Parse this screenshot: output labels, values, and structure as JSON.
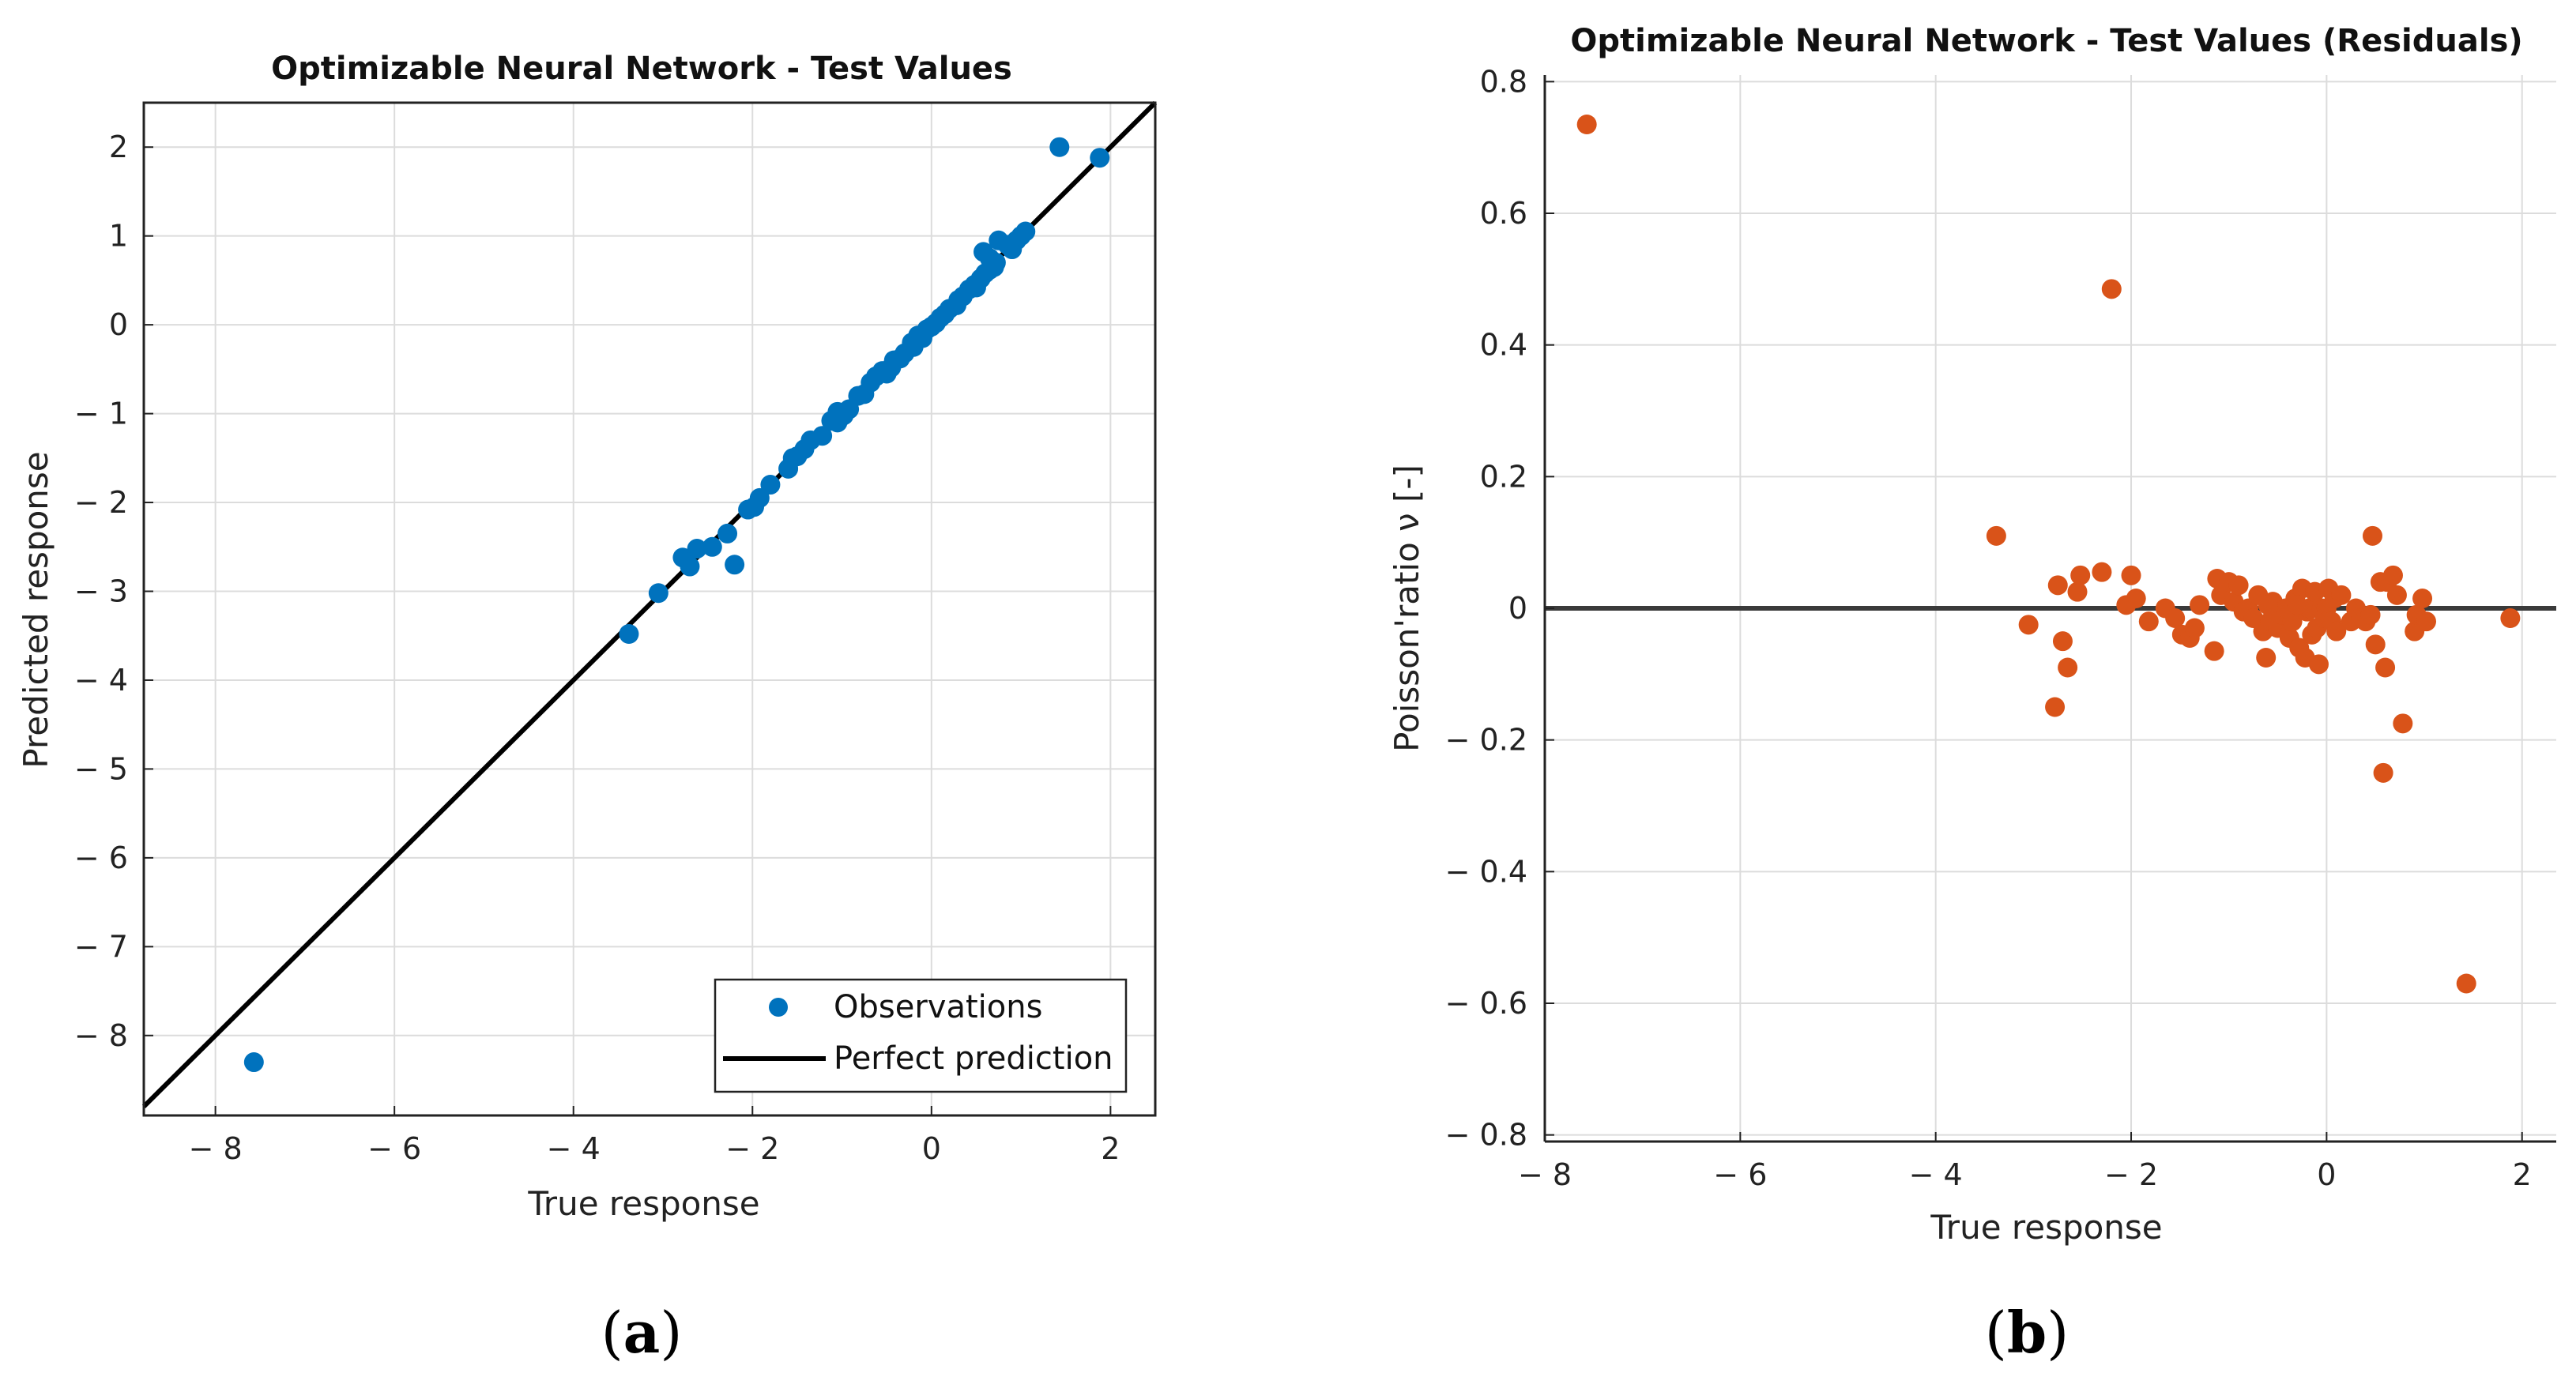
{
  "figure": {
    "label_a": "a",
    "label_b": "b"
  },
  "chart_data": [
    {
      "type": "scatter",
      "title": "Optimizable Neural Network - Test Values",
      "xlabel": "True response",
      "ylabel": "Predicted response",
      "xlim": [
        -8.8,
        2.5
      ],
      "ylim": [
        -8.9,
        2.5
      ],
      "xticks": [
        -8,
        -6,
        -4,
        -2,
        0,
        2
      ],
      "yticks": [
        -8,
        -7,
        -6,
        -5,
        -4,
        -3,
        -2,
        -1,
        0,
        1,
        2
      ],
      "grid": true,
      "legend": {
        "position": "bottom-right",
        "entries": [
          "Observations",
          "Perfect prediction"
        ]
      },
      "series": [
        {
          "name": "Observations",
          "color": "#0072BD",
          "points": [
            [
              -7.57,
              -8.3
            ],
            [
              -3.38,
              -3.48
            ],
            [
              -3.05,
              -3.02
            ],
            [
              -2.78,
              -2.62
            ],
            [
              -2.7,
              -2.72
            ],
            [
              -2.62,
              -2.52
            ],
            [
              -2.45,
              -2.5
            ],
            [
              -2.28,
              -2.35
            ],
            [
              -2.2,
              -2.7
            ],
            [
              -2.05,
              -2.08
            ],
            [
              -1.98,
              -2.05
            ],
            [
              -1.92,
              -1.95
            ],
            [
              -1.8,
              -1.8
            ],
            [
              -1.6,
              -1.62
            ],
            [
              -1.5,
              -1.48
            ],
            [
              -1.42,
              -1.4
            ],
            [
              -1.35,
              -1.3
            ],
            [
              -1.22,
              -1.25
            ],
            [
              -1.12,
              -1.08
            ],
            [
              -1.05,
              -1.1
            ],
            [
              -0.98,
              -1.02
            ],
            [
              -0.92,
              -0.95
            ],
            [
              -0.82,
              -0.8
            ],
            [
              -0.75,
              -0.78
            ],
            [
              -0.68,
              -0.65
            ],
            [
              -0.62,
              -0.58
            ],
            [
              -0.55,
              -0.52
            ],
            [
              -0.5,
              -0.55
            ],
            [
              -0.42,
              -0.4
            ],
            [
              -0.35,
              -0.38
            ],
            [
              -0.3,
              -0.32
            ],
            [
              -0.22,
              -0.2
            ],
            [
              -0.15,
              -0.12
            ],
            [
              -0.1,
              -0.15
            ],
            [
              -0.05,
              -0.05
            ],
            [
              0.0,
              -0.02
            ],
            [
              0.05,
              0.02
            ],
            [
              0.1,
              0.08
            ],
            [
              0.15,
              0.12
            ],
            [
              0.2,
              0.18
            ],
            [
              0.28,
              0.22
            ],
            [
              0.35,
              0.32
            ],
            [
              0.42,
              0.4
            ],
            [
              0.48,
              0.45
            ],
            [
              0.55,
              0.52
            ],
            [
              0.6,
              0.58
            ],
            [
              0.65,
              0.62
            ],
            [
              0.72,
              0.7
            ],
            [
              0.58,
              0.82
            ],
            [
              0.65,
              0.75
            ],
            [
              0.75,
              0.95
            ],
            [
              0.85,
              0.9
            ],
            [
              0.9,
              0.85
            ],
            [
              0.95,
              0.95
            ],
            [
              1.0,
              1.0
            ],
            [
              1.05,
              1.05
            ],
            [
              1.43,
              2.0
            ],
            [
              1.88,
              1.88
            ],
            [
              -1.05,
              -0.98
            ],
            [
              -0.45,
              -0.48
            ],
            [
              0.3,
              0.28
            ],
            [
              0.5,
              0.42
            ],
            [
              0.7,
              0.65
            ],
            [
              -0.2,
              -0.25
            ],
            [
              -1.55,
              -1.5
            ]
          ]
        },
        {
          "name": "Perfect prediction",
          "color": "#000000",
          "line": [
            [
              -8.8,
              -8.8
            ],
            [
              2.5,
              2.5
            ]
          ]
        }
      ]
    },
    {
      "type": "scatter",
      "title": "Optimizable Neural Network - Test Values (Residuals)",
      "xlabel": "True response",
      "ylabel": "Poisson'ratio ν [-]",
      "xlim": [
        -8,
        2.35
      ],
      "ylim": [
        -0.81,
        0.81
      ],
      "xticks": [
        -8,
        -6,
        -4,
        -2,
        0,
        2
      ],
      "yticks": [
        -0.8,
        -0.6,
        -0.4,
        -0.2,
        0,
        0.2,
        0.4,
        0.6,
        0.8
      ],
      "ytick_labels": [
        "− 0.8",
        "− 0.6",
        "− 0.4",
        "− 0.2",
        "0",
        "0.2",
        "0.4",
        "0.6",
        "0.8"
      ],
      "grid": true,
      "zero_line": 0,
      "series": [
        {
          "name": "Residuals",
          "color": "#D95319",
          "points": [
            [
              -7.57,
              0.735
            ],
            [
              -2.2,
              0.485
            ],
            [
              -3.38,
              0.11
            ],
            [
              -3.05,
              -0.025
            ],
            [
              -2.78,
              -0.15
            ],
            [
              -2.75,
              0.035
            ],
            [
              -2.7,
              -0.05
            ],
            [
              -2.65,
              -0.09
            ],
            [
              -2.55,
              0.025
            ],
            [
              -2.52,
              0.05
            ],
            [
              -2.3,
              0.055
            ],
            [
              -2.05,
              0.005
            ],
            [
              -2.0,
              0.05
            ],
            [
              -1.95,
              0.015
            ],
            [
              -1.82,
              -0.02
            ],
            [
              -1.65,
              0.0
            ],
            [
              -1.55,
              -0.015
            ],
            [
              -1.48,
              -0.04
            ],
            [
              -1.4,
              -0.045
            ],
            [
              -1.35,
              -0.03
            ],
            [
              -1.3,
              0.005
            ],
            [
              -1.15,
              -0.065
            ],
            [
              -1.12,
              0.045
            ],
            [
              -1.08,
              0.02
            ],
            [
              -1.0,
              0.04
            ],
            [
              -0.95,
              0.01
            ],
            [
              -0.9,
              0.035
            ],
            [
              -0.85,
              -0.005
            ],
            [
              -0.8,
              0.0
            ],
            [
              -0.75,
              -0.015
            ],
            [
              -0.7,
              0.02
            ],
            [
              -0.65,
              -0.035
            ],
            [
              -0.62,
              -0.075
            ],
            [
              -0.58,
              -0.02
            ],
            [
              -0.55,
              0.01
            ],
            [
              -0.5,
              -0.03
            ],
            [
              -0.45,
              -0.01
            ],
            [
              -0.42,
              0.0
            ],
            [
              -0.38,
              -0.045
            ],
            [
              -0.35,
              -0.02
            ],
            [
              -0.32,
              0.015
            ],
            [
              -0.28,
              -0.06
            ],
            [
              -0.25,
              0.03
            ],
            [
              -0.22,
              -0.075
            ],
            [
              -0.2,
              -0.005
            ],
            [
              -0.18,
              0.0
            ],
            [
              -0.15,
              -0.04
            ],
            [
              -0.12,
              0.025
            ],
            [
              -0.1,
              -0.03
            ],
            [
              -0.08,
              -0.085
            ],
            [
              -0.05,
              0.0
            ],
            [
              -0.02,
              -0.015
            ],
            [
              0.0,
              0.0
            ],
            [
              0.02,
              0.03
            ],
            [
              0.05,
              -0.02
            ],
            [
              0.08,
              0.015
            ],
            [
              0.1,
              -0.035
            ],
            [
              0.15,
              0.02
            ],
            [
              0.25,
              -0.02
            ],
            [
              0.3,
              0.0
            ],
            [
              0.35,
              -0.015
            ],
            [
              0.4,
              -0.02
            ],
            [
              0.45,
              -0.01
            ],
            [
              0.47,
              0.11
            ],
            [
              0.5,
              -0.055
            ],
            [
              0.55,
              0.04
            ],
            [
              0.58,
              -0.25
            ],
            [
              0.6,
              -0.09
            ],
            [
              0.62,
              0.04
            ],
            [
              0.68,
              0.05
            ],
            [
              0.72,
              0.02
            ],
            [
              0.78,
              -0.175
            ],
            [
              0.9,
              -0.035
            ],
            [
              0.92,
              -0.01
            ],
            [
              0.98,
              0.015
            ],
            [
              1.02,
              -0.02
            ],
            [
              1.43,
              -0.57
            ],
            [
              1.88,
              -0.015
            ],
            [
              -0.3,
              0.005
            ],
            [
              -0.6,
              0.005
            ]
          ]
        }
      ]
    }
  ]
}
